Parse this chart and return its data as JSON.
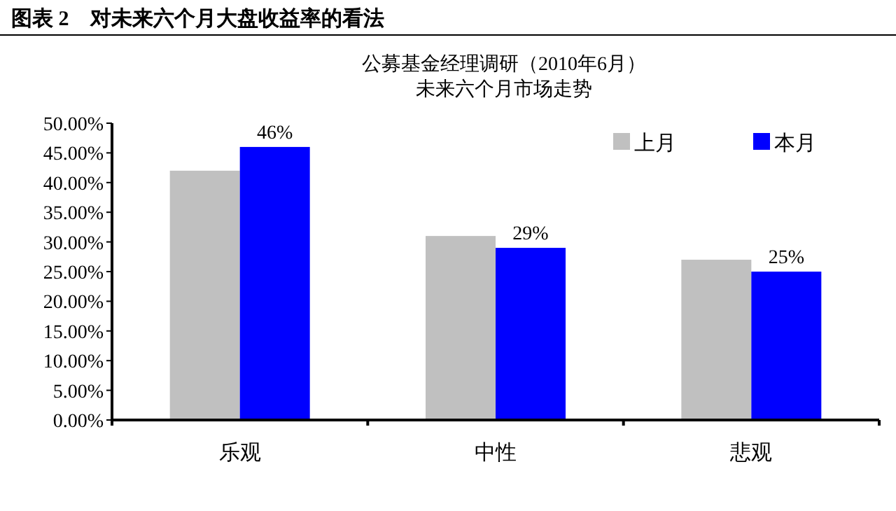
{
  "chart_data": {
    "type": "bar",
    "title": "图表 2　对未来六个月大盘收益率的看法",
    "subtitle": "公募基金经理调研（2010年6月）",
    "annotations": [
      "未来六个月市场走势"
    ],
    "categories": [
      "乐观",
      "中性",
      "悲观"
    ],
    "series": [
      {
        "name": "上月",
        "color": "#c0c0c0",
        "values": [
          42,
          31,
          27
        ]
      },
      {
        "name": "本月",
        "color": "#0000ff",
        "values": [
          46,
          29,
          25
        ],
        "value_labels": [
          "46%",
          "29%",
          "25%"
        ]
      }
    ],
    "ylim": [
      0,
      50
    ],
    "yticks": [
      {
        "value": 0,
        "label": "0.00%"
      },
      {
        "value": 5,
        "label": "5.00%"
      },
      {
        "value": 10,
        "label": "10.00%"
      },
      {
        "value": 15,
        "label": "15.00%"
      },
      {
        "value": 20,
        "label": "20.00%"
      },
      {
        "value": 25,
        "label": "25.00%"
      },
      {
        "value": 30,
        "label": "30.00%"
      },
      {
        "value": 35,
        "label": "35.00%"
      },
      {
        "value": 40,
        "label": "40.00%"
      },
      {
        "value": 45,
        "label": "45.00%"
      },
      {
        "value": 50,
        "label": "50.00%"
      }
    ],
    "legend": "top right",
    "grid": false
  }
}
